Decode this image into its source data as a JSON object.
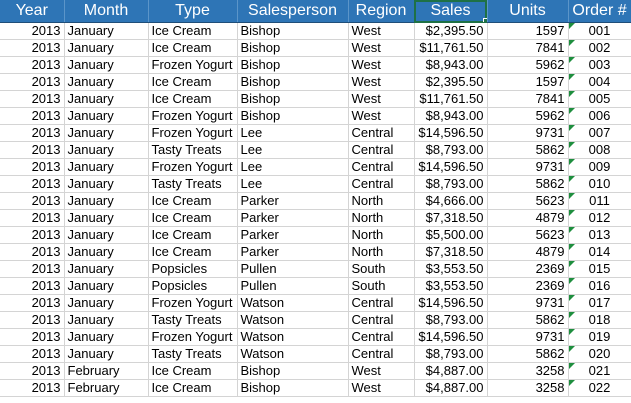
{
  "columns": [
    "Year",
    "Month",
    "Type",
    "Salesperson",
    "Region",
    "Sales",
    "Units",
    "Order #"
  ],
  "selected_column": "Sales",
  "colors": {
    "header_bg": "#2e75b6",
    "header_text": "#ffffff",
    "selection": "#1e7145",
    "text_indicator": "#1e8e3e",
    "gridline": "#d4d4d4"
  },
  "rows": [
    [
      "2013",
      "January",
      "Ice Cream",
      "Bishop",
      "West",
      "$2,395.50",
      "1597",
      "001"
    ],
    [
      "2013",
      "January",
      "Ice Cream",
      "Bishop",
      "West",
      "$11,761.50",
      "7841",
      "002"
    ],
    [
      "2013",
      "January",
      "Frozen Yogurt",
      "Bishop",
      "West",
      "$8,943.00",
      "5962",
      "003"
    ],
    [
      "2013",
      "January",
      "Ice Cream",
      "Bishop",
      "West",
      "$2,395.50",
      "1597",
      "004"
    ],
    [
      "2013",
      "January",
      "Ice Cream",
      "Bishop",
      "West",
      "$11,761.50",
      "7841",
      "005"
    ],
    [
      "2013",
      "January",
      "Frozen Yogurt",
      "Bishop",
      "West",
      "$8,943.00",
      "5962",
      "006"
    ],
    [
      "2013",
      "January",
      "Frozen Yogurt",
      "Lee",
      "Central",
      "$14,596.50",
      "9731",
      "007"
    ],
    [
      "2013",
      "January",
      "Tasty Treats",
      "Lee",
      "Central",
      "$8,793.00",
      "5862",
      "008"
    ],
    [
      "2013",
      "January",
      "Frozen Yogurt",
      "Lee",
      "Central",
      "$14,596.50",
      "9731",
      "009"
    ],
    [
      "2013",
      "January",
      "Tasty Treats",
      "Lee",
      "Central",
      "$8,793.00",
      "5862",
      "010"
    ],
    [
      "2013",
      "January",
      "Ice Cream",
      "Parker",
      "North",
      "$4,666.00",
      "5623",
      "011"
    ],
    [
      "2013",
      "January",
      "Ice Cream",
      "Parker",
      "North",
      "$7,318.50",
      "4879",
      "012"
    ],
    [
      "2013",
      "January",
      "Ice Cream",
      "Parker",
      "North",
      "$5,500.00",
      "5623",
      "013"
    ],
    [
      "2013",
      "January",
      "Ice Cream",
      "Parker",
      "North",
      "$7,318.50",
      "4879",
      "014"
    ],
    [
      "2013",
      "January",
      "Popsicles",
      "Pullen",
      "South",
      "$3,553.50",
      "2369",
      "015"
    ],
    [
      "2013",
      "January",
      "Popsicles",
      "Pullen",
      "South",
      "$3,553.50",
      "2369",
      "016"
    ],
    [
      "2013",
      "January",
      "Frozen Yogurt",
      "Watson",
      "Central",
      "$14,596.50",
      "9731",
      "017"
    ],
    [
      "2013",
      "January",
      "Tasty Treats",
      "Watson",
      "Central",
      "$8,793.00",
      "5862",
      "018"
    ],
    [
      "2013",
      "January",
      "Frozen Yogurt",
      "Watson",
      "Central",
      "$14,596.50",
      "9731",
      "019"
    ],
    [
      "2013",
      "January",
      "Tasty Treats",
      "Watson",
      "Central",
      "$8,793.00",
      "5862",
      "020"
    ],
    [
      "2013",
      "February",
      "Ice Cream",
      "Bishop",
      "West",
      "$4,887.00",
      "3258",
      "021"
    ],
    [
      "2013",
      "February",
      "Ice Cream",
      "Bishop",
      "West",
      "$4,887.00",
      "3258",
      "022"
    ]
  ]
}
